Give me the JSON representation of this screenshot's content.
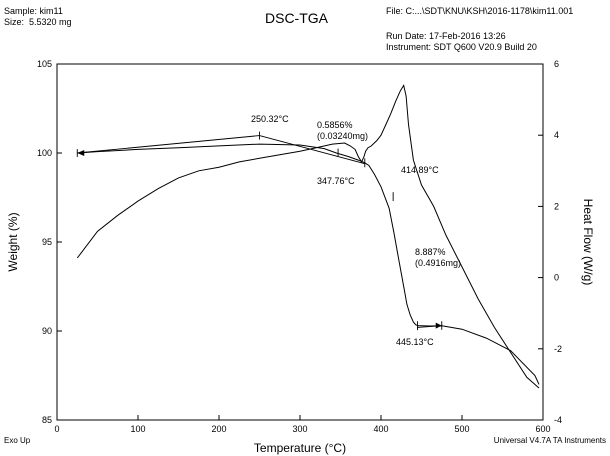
{
  "header": {
    "sample": "Sample: kim11",
    "size": "Size:  5.5320 mg",
    "file": "File: C:...\\SDT\\KNU\\KSH\\2016-1178\\kim11.001",
    "run_date": "Run Date: 17-Feb-2016 13:26",
    "instrument": "Instrument: SDT Q600 V20.9 Build 20"
  },
  "footer": {
    "exo": "Exo Up",
    "software": "Universal V4.7A TA Instruments"
  },
  "chart_data": {
    "type": "line",
    "title": "DSC-TGA",
    "xlabel": "Temperature (°C)",
    "ylabel": "Weight (%)",
    "y2label": "Heat Flow (W/g)",
    "xlim": [
      0,
      600
    ],
    "ylim": [
      85,
      105
    ],
    "y2lim": [
      -4,
      6
    ],
    "xticks": [
      0,
      100,
      200,
      300,
      400,
      500,
      600
    ],
    "yticks": [
      85,
      90,
      95,
      100,
      105
    ],
    "y2ticks": [
      -4,
      -2,
      0,
      2,
      4,
      6
    ],
    "grid": false,
    "series": [
      {
        "axis": "left",
        "color": "#000000",
        "x": [
          25,
          50,
          100,
          150,
          200,
          250,
          300,
          330,
          345,
          360,
          372,
          380,
          385,
          392,
          400,
          410,
          416,
          422,
          428,
          432,
          436,
          440,
          443,
          446,
          450,
          460,
          475,
          500,
          530,
          560,
          590,
          595
        ],
        "y": [
          100.0,
          100.08,
          100.2,
          100.3,
          100.4,
          100.5,
          100.45,
          100.25,
          100.0,
          99.8,
          99.6,
          99.45,
          99.3,
          98.8,
          98.1,
          96.9,
          95.5,
          94.0,
          92.5,
          91.5,
          90.9,
          90.5,
          90.35,
          90.3,
          90.3,
          90.28,
          90.3,
          90.1,
          89.6,
          88.9,
          87.5,
          87.0
        ]
      },
      {
        "axis": "right",
        "color": "#000000",
        "x": [
          25,
          50,
          75,
          100,
          125,
          150,
          175,
          200,
          225,
          250,
          275,
          300,
          320,
          340,
          355,
          362,
          368,
          372,
          376,
          379,
          381,
          384,
          388,
          395,
          400,
          406,
          412,
          418,
          424,
          428,
          431,
          434,
          440,
          450,
          465,
          480,
          500,
          520,
          540,
          560,
          580,
          595
        ],
        "y": [
          0.55,
          1.3,
          1.75,
          2.15,
          2.5,
          2.8,
          3.0,
          3.1,
          3.25,
          3.35,
          3.45,
          3.55,
          3.65,
          3.75,
          3.78,
          3.7,
          3.6,
          3.4,
          3.25,
          3.4,
          3.55,
          3.65,
          3.7,
          3.85,
          4.0,
          4.3,
          4.6,
          4.95,
          5.25,
          5.4,
          5.1,
          4.3,
          3.3,
          2.6,
          2.0,
          1.2,
          0.3,
          -0.6,
          -1.4,
          -2.1,
          -2.8,
          -3.1
        ]
      }
    ],
    "annotations": [
      {
        "text": "250.32°C"
      },
      {
        "text": "0.5856%"
      },
      {
        "text": "(0.03240mg)"
      },
      {
        "text": "347.76°C"
      },
      {
        "text": "414.89°C"
      },
      {
        "text": "8.887%"
      },
      {
        "text": "(0.4916mg)"
      },
      {
        "text": "445.13°C"
      }
    ],
    "legend": "none"
  }
}
